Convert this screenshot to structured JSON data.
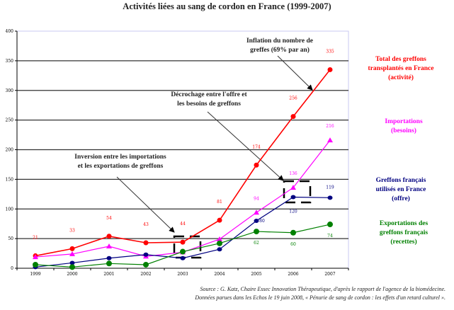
{
  "chart_data": {
    "type": "line",
    "title": "Activités liées au sang de cordon en France (1999-2007)",
    "categories": [
      "1999",
      "2000",
      "2001",
      "2002",
      "2003",
      "2004",
      "2005",
      "2006",
      "2007"
    ],
    "ylim": [
      0,
      400
    ],
    "yticks": [
      0,
      50,
      100,
      150,
      200,
      250,
      300,
      350,
      400
    ],
    "grid": true,
    "legend_placement": "right",
    "series": [
      {
        "name": "Total des greffons transplantés en France (activité)",
        "color": "#ff0000",
        "marker": "circle",
        "values": [
          21,
          33,
          54,
          43,
          44,
          81,
          174,
          256,
          335
        ],
        "labels": [
          "21",
          "33",
          "54",
          "43",
          "44",
          "81",
          "174",
          "256",
          "335"
        ]
      },
      {
        "name": "Importations (besoins)",
        "color": "#ff00ff",
        "marker": "triangle",
        "values": [
          19,
          24,
          37,
          20,
          27,
          49,
          94,
          136,
          216
        ],
        "labels": [
          "",
          "",
          "",
          "",
          "",
          "",
          "94",
          "136",
          "216"
        ]
      },
      {
        "name": "Greffons français utilisés en France (offre)",
        "color": "#000080",
        "marker": "diamond",
        "values": [
          2,
          9,
          17,
          23,
          17,
          32,
          80,
          120,
          119
        ],
        "labels": [
          "",
          "",
          "",
          "",
          "",
          "",
          "80",
          "120",
          "119"
        ]
      },
      {
        "name": "Exportations des greffons français (recettes)",
        "color": "#008000",
        "marker": "circle",
        "values": [
          6,
          2,
          8,
          6,
          28,
          42,
          62,
          60,
          74
        ],
        "labels": [
          "",
          "",
          "",
          "",
          "",
          "",
          "62",
          "60",
          "74"
        ]
      }
    ],
    "legend": [
      {
        "line1": "Total des greffons",
        "line2": "transplantés en France",
        "line3": "(activité)",
        "color": "#ff0000"
      },
      {
        "line1": "Importations",
        "line2": "(besoins)",
        "line3": "",
        "color": "#ff00ff"
      },
      {
        "line1": "Greffons français",
        "line2": "utilisés en France",
        "line3": "(offre)",
        "color": "#000080"
      },
      {
        "line1": "Exportations des",
        "line2": "greffons français",
        "line3": "(recettes)",
        "color": "#008000"
      }
    ],
    "annotations": [
      {
        "line1": "Inflation du nombre de",
        "line2": "greffes (69% par an)"
      },
      {
        "line1": "Décrochage entre l'offre et",
        "line2": "les besoins de greffons"
      },
      {
        "line1": "Inversion entre les importations",
        "line2": "et les exportations de greffons"
      }
    ]
  },
  "source": {
    "line1": "Source : G. Katz, Chaire Essec Innovation Thérapeutique, d'après le rapport de l'agence de la biomédecine.",
    "line2": "Données parues dans les Echos le 19 juin 2008, « Pénurie de sang de cordon : les effets d'un retard culturel »."
  }
}
